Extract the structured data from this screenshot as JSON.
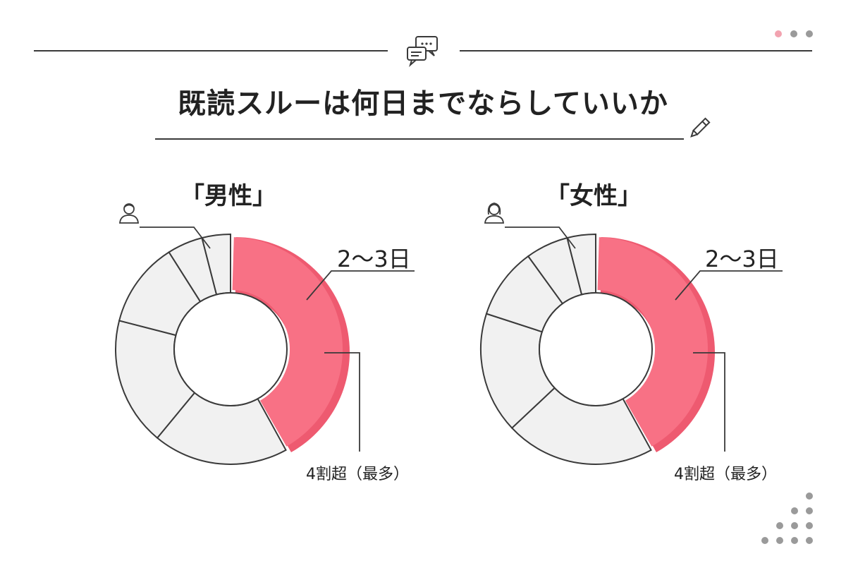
{
  "title": "既読スルーは何日までならしていいか",
  "colors": {
    "accent": "#f87185",
    "accent_shadow": "#ee5a70",
    "neutral": "#f1f1f1",
    "stroke": "#3a3a3a",
    "dot_pink": "#f2a3b0",
    "dot_gray": "#9a9a9a"
  },
  "icons": {
    "header": "chat-bubbles-icon",
    "pencil": "pencil-icon",
    "male": "male-person-icon",
    "female": "female-person-icon"
  },
  "chart_data": [
    {
      "type": "pie",
      "title": "「男性」",
      "highlight_label": "2〜3日",
      "highlight_note": "4割超（最多）",
      "slices": [
        {
          "label": "2〜3日",
          "value": 42,
          "highlight": true
        },
        {
          "label": "",
          "value": 19
        },
        {
          "label": "",
          "value": 18
        },
        {
          "label": "",
          "value": 12
        },
        {
          "label": "",
          "value": 5
        },
        {
          "label": "",
          "value": 4
        }
      ]
    },
    {
      "type": "pie",
      "title": "「女性」",
      "highlight_label": "2〜3日",
      "highlight_note": "4割超（最多）",
      "slices": [
        {
          "label": "2〜3日",
          "value": 42,
          "highlight": true
        },
        {
          "label": "",
          "value": 21
        },
        {
          "label": "",
          "value": 17
        },
        {
          "label": "",
          "value": 10
        },
        {
          "label": "",
          "value": 6
        },
        {
          "label": "",
          "value": 4
        }
      ]
    }
  ]
}
